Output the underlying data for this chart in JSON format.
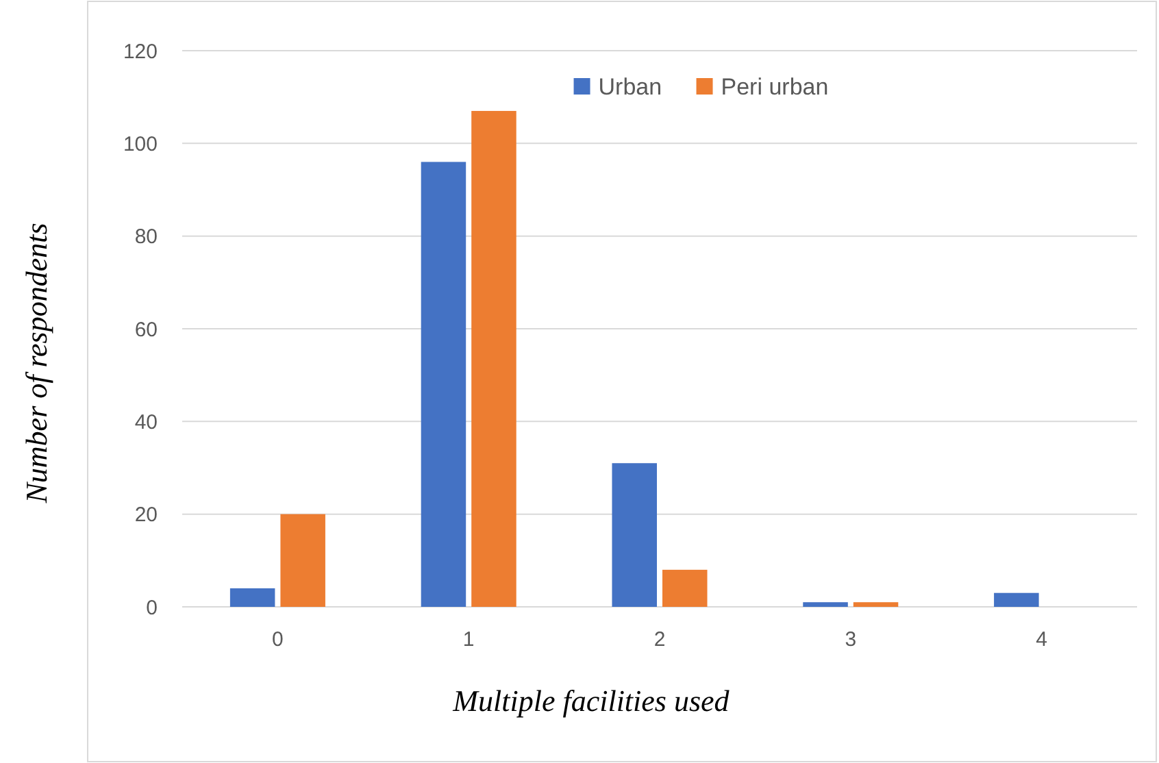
{
  "chart_data": {
    "type": "bar",
    "xlabel": "Multiple facilities used",
    "ylabel": "Number of respondents",
    "categories": [
      "0",
      "1",
      "2",
      "3",
      "4"
    ],
    "series": [
      {
        "name": "Urban",
        "color": "#4472c4",
        "values": [
          4,
          96,
          31,
          1,
          3
        ]
      },
      {
        "name": "Peri urban",
        "color": "#ed7d31",
        "values": [
          20,
          107,
          8,
          1,
          0
        ]
      }
    ],
    "ylim": [
      0,
      120
    ],
    "yticks": [
      0,
      20,
      40,
      60,
      80,
      100,
      120
    ],
    "grid": "y",
    "legend": "top"
  }
}
